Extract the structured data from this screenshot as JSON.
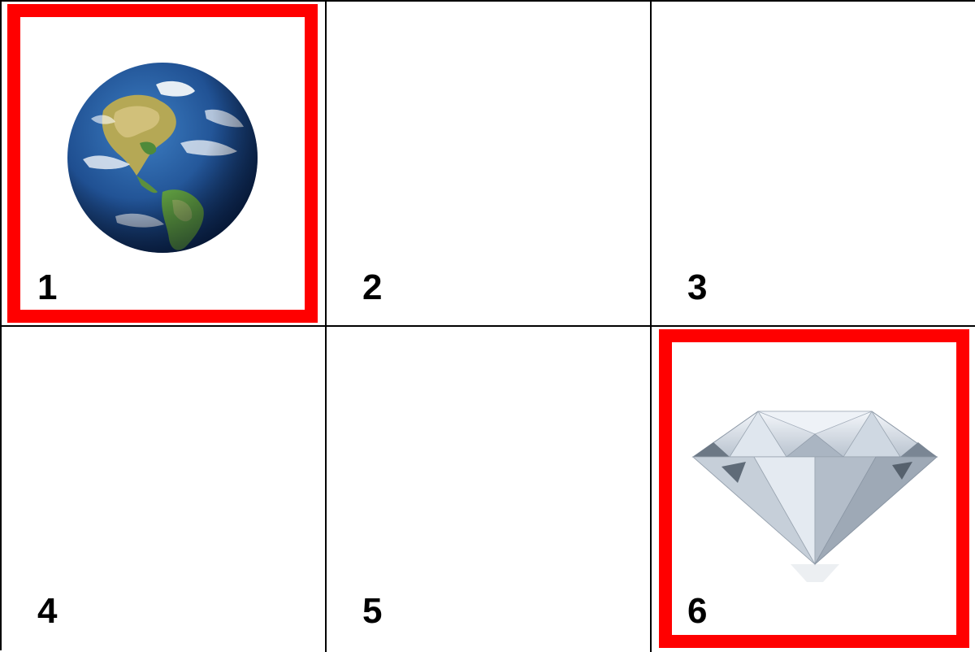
{
  "tiles": [
    {
      "number": "1",
      "selected": true,
      "image": "earth-globe"
    },
    {
      "number": "2",
      "selected": false,
      "image": ""
    },
    {
      "number": "3",
      "selected": false,
      "image": ""
    },
    {
      "number": "4",
      "selected": false,
      "image": ""
    },
    {
      "number": "5",
      "selected": false,
      "image": ""
    },
    {
      "number": "6",
      "selected": true,
      "image": "diamond"
    }
  ],
  "colors": {
    "highlight": "#ff0000",
    "grid_line": "#000000",
    "background": "#ffffff"
  }
}
